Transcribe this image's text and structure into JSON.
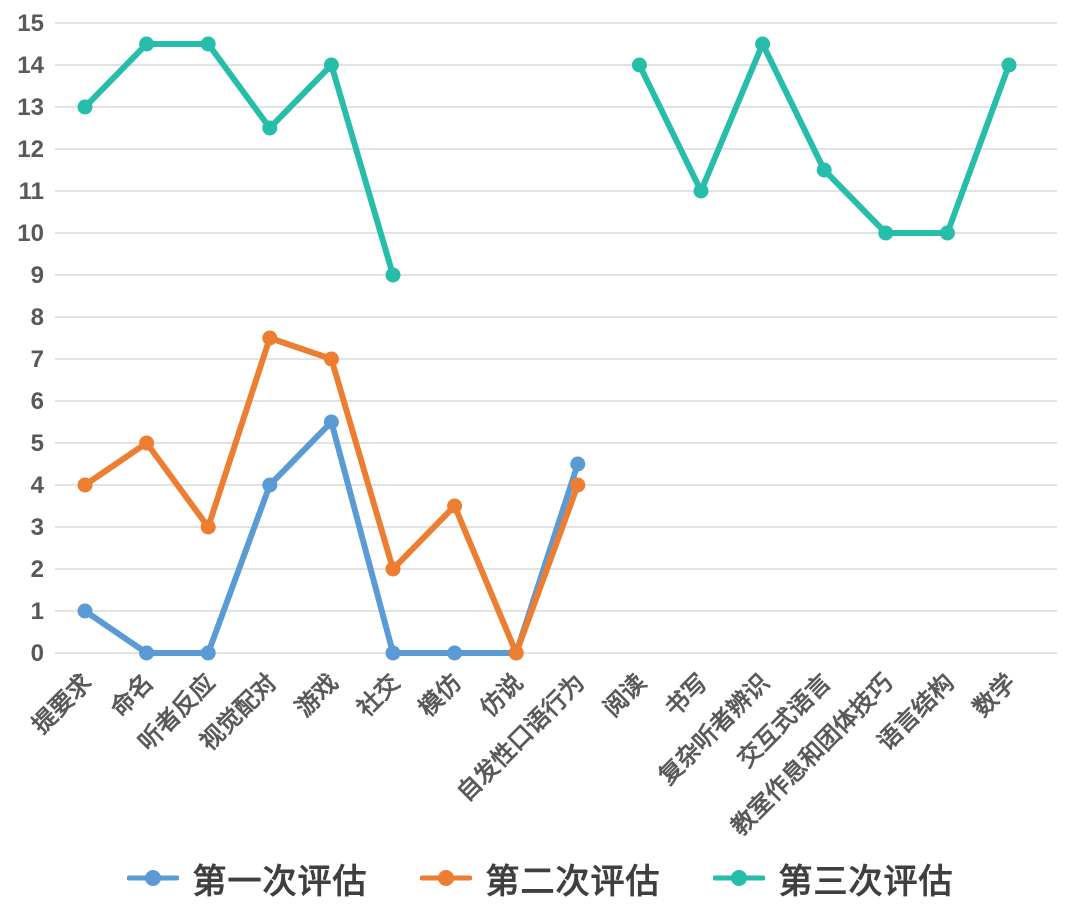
{
  "chart_data": {
    "type": "line",
    "title": "",
    "categories": [
      "提要求",
      "命名",
      "听者反应",
      "视觉配对",
      "游戏",
      "社交",
      "模仿",
      "仿说",
      "自发性口语行为",
      "阅读",
      "书写",
      "复杂听者辨识",
      "交互式语言",
      "教室作息和团体技巧",
      "语言结构",
      "数学"
    ],
    "series": [
      {
        "name": "第一次评估",
        "color": "#5B9BD5",
        "values": [
          1,
          0,
          0,
          4,
          5.5,
          0,
          0,
          0,
          4.5,
          null,
          null,
          null,
          null,
          null,
          null,
          null
        ]
      },
      {
        "name": "第二次评估",
        "color": "#ED7D31",
        "values": [
          4,
          5,
          3,
          7.5,
          7,
          2,
          3.5,
          0,
          4,
          null,
          null,
          null,
          null,
          null,
          null,
          null
        ]
      },
      {
        "name": "第三次评估",
        "color": "#26BDAB",
        "values": [
          13,
          14.5,
          14.5,
          12.5,
          14,
          9,
          null,
          null,
          null,
          14,
          11,
          14.5,
          11.5,
          10,
          10,
          14
        ]
      }
    ],
    "ylim": [
      0,
      15
    ],
    "ytick_step": 1,
    "ytick_labels": [
      "0",
      "1",
      "2",
      "3",
      "4",
      "5",
      "6",
      "7",
      "8",
      "9",
      "10",
      "11",
      "12",
      "13",
      "14",
      "15"
    ],
    "grid": true,
    "gridline_color": "#D9D9D9",
    "axis_label_color": "#595959",
    "legend_position": "bottom",
    "legend": [
      "第一次评估",
      "第二次评估",
      "第三次评估"
    ]
  }
}
